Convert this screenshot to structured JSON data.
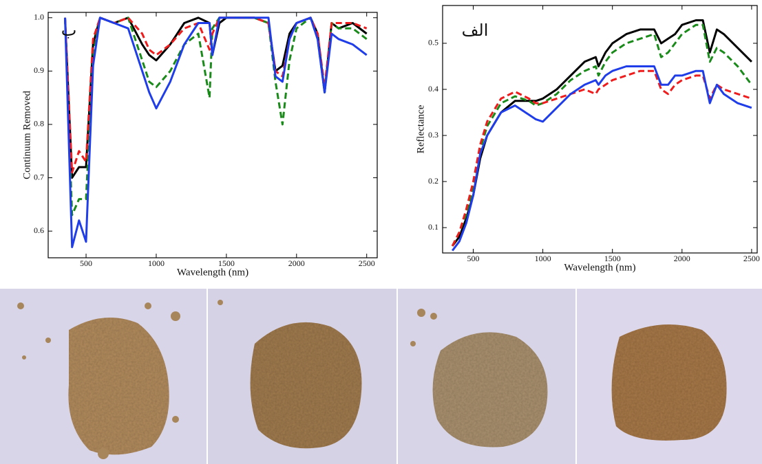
{
  "chart_data": [
    {
      "type": "line",
      "annotation": "ب",
      "x_label": "Wavelength (nm)",
      "y_label": "Continuum Removed",
      "x": [
        350,
        400,
        450,
        500,
        550,
        600,
        700,
        800,
        900,
        950,
        1000,
        1100,
        1200,
        1300,
        1380,
        1400,
        1450,
        1500,
        1600,
        1700,
        1800,
        1850,
        1900,
        1950,
        2000,
        2100,
        2150,
        2200,
        2250,
        2300,
        2400,
        2500
      ],
      "series": [
        {
          "color": "#000000",
          "dash": false,
          "values": [
            1.0,
            0.7,
            0.72,
            0.72,
            0.95,
            1.0,
            0.99,
            1.0,
            0.95,
            0.93,
            0.92,
            0.95,
            0.99,
            1.0,
            0.99,
            0.93,
            0.99,
            1.0,
            1.0,
            1.0,
            0.99,
            0.9,
            0.91,
            0.97,
            0.99,
            1.0,
            0.97,
            0.86,
            0.99,
            0.98,
            0.99,
            0.97
          ]
        },
        {
          "color": "#1a8a1a",
          "dash": true,
          "values": [
            1.0,
            0.63,
            0.66,
            0.66,
            0.93,
            1.0,
            0.99,
            1.0,
            0.92,
            0.88,
            0.87,
            0.9,
            0.95,
            0.97,
            0.85,
            0.98,
            1.0,
            1.0,
            1.0,
            1.0,
            0.99,
            0.88,
            0.8,
            0.92,
            0.98,
            1.0,
            0.96,
            0.86,
            0.99,
            0.98,
            0.98,
            0.96
          ]
        },
        {
          "color": "#ee1c1c",
          "dash": true,
          "values": [
            1.0,
            0.71,
            0.75,
            0.73,
            0.96,
            1.0,
            0.99,
            1.0,
            0.97,
            0.94,
            0.93,
            0.95,
            0.98,
            0.99,
            0.94,
            0.97,
            1.0,
            1.0,
            1.0,
            1.0,
            0.99,
            0.9,
            0.89,
            0.96,
            0.99,
            1.0,
            0.97,
            0.87,
            0.99,
            0.99,
            0.99,
            0.98
          ]
        },
        {
          "color": "#1f3de8",
          "dash": false,
          "values": [
            1.0,
            0.57,
            0.62,
            0.58,
            0.91,
            1.0,
            0.99,
            0.98,
            0.9,
            0.86,
            0.83,
            0.88,
            0.95,
            0.99,
            0.99,
            0.93,
            1.0,
            1.0,
            1.0,
            1.0,
            1.0,
            0.89,
            0.88,
            0.96,
            0.99,
            1.0,
            0.96,
            0.86,
            0.97,
            0.96,
            0.95,
            0.93
          ]
        }
      ],
      "xlim": [
        230,
        2575
      ],
      "xticks": [
        500,
        1000,
        1500,
        2000,
        2500
      ],
      "ylim": [
        0.55,
        1.01
      ],
      "yticks": [
        0.6,
        0.7,
        0.8,
        0.9,
        {
          "value": 1,
          "label": "1.0"
        }
      ]
    },
    {
      "type": "line",
      "annotation": "الف",
      "x_label": "Wavelength (nm)",
      "y_label": "Reflectance",
      "x": [
        350,
        400,
        450,
        500,
        550,
        600,
        700,
        800,
        900,
        950,
        1000,
        1100,
        1200,
        1300,
        1380,
        1400,
        1450,
        1500,
        1600,
        1700,
        1800,
        1850,
        1900,
        1950,
        2000,
        2100,
        2150,
        2200,
        2250,
        2300,
        2400,
        2500
      ],
      "series": [
        {
          "color": "#000000",
          "dash": false,
          "values": [
            0.06,
            0.08,
            0.12,
            0.17,
            0.25,
            0.3,
            0.35,
            0.375,
            0.375,
            0.375,
            0.38,
            0.4,
            0.43,
            0.46,
            0.47,
            0.45,
            0.48,
            0.5,
            0.52,
            0.53,
            0.53,
            0.5,
            0.51,
            0.52,
            0.54,
            0.55,
            0.55,
            0.48,
            0.53,
            0.52,
            0.49,
            0.46
          ]
        },
        {
          "color": "#1a8a1a",
          "dash": true,
          "values": [
            0.06,
            0.09,
            0.13,
            0.19,
            0.27,
            0.32,
            0.37,
            0.385,
            0.375,
            0.365,
            0.37,
            0.39,
            0.42,
            0.44,
            0.45,
            0.43,
            0.46,
            0.48,
            0.5,
            0.51,
            0.52,
            0.47,
            0.48,
            0.5,
            0.52,
            0.54,
            0.54,
            0.46,
            0.49,
            0.48,
            0.45,
            0.41
          ]
        },
        {
          "color": "#ee1c1c",
          "dash": true,
          "values": [
            0.06,
            0.09,
            0.14,
            0.2,
            0.28,
            0.33,
            0.38,
            0.395,
            0.38,
            0.37,
            0.37,
            0.38,
            0.39,
            0.4,
            0.39,
            0.4,
            0.41,
            0.42,
            0.43,
            0.44,
            0.44,
            0.4,
            0.39,
            0.41,
            0.42,
            0.43,
            0.43,
            0.38,
            0.41,
            0.4,
            0.39,
            0.38
          ]
        },
        {
          "color": "#1f3de8",
          "dash": false,
          "values": [
            0.05,
            0.07,
            0.11,
            0.17,
            0.26,
            0.3,
            0.35,
            0.365,
            0.345,
            0.335,
            0.33,
            0.36,
            0.39,
            0.41,
            0.42,
            0.41,
            0.43,
            0.44,
            0.45,
            0.45,
            0.45,
            0.41,
            0.41,
            0.43,
            0.43,
            0.44,
            0.44,
            0.37,
            0.41,
            0.39,
            0.37,
            0.36
          ]
        }
      ],
      "xlim": [
        280,
        2540
      ],
      "xticks": [
        500,
        1000,
        1500,
        2000,
        2500
      ],
      "ylim": [
        0.045,
        0.582
      ],
      "yticks": [
        0.1,
        0.2,
        0.3,
        0.4,
        0.5
      ]
    }
  ]
}
